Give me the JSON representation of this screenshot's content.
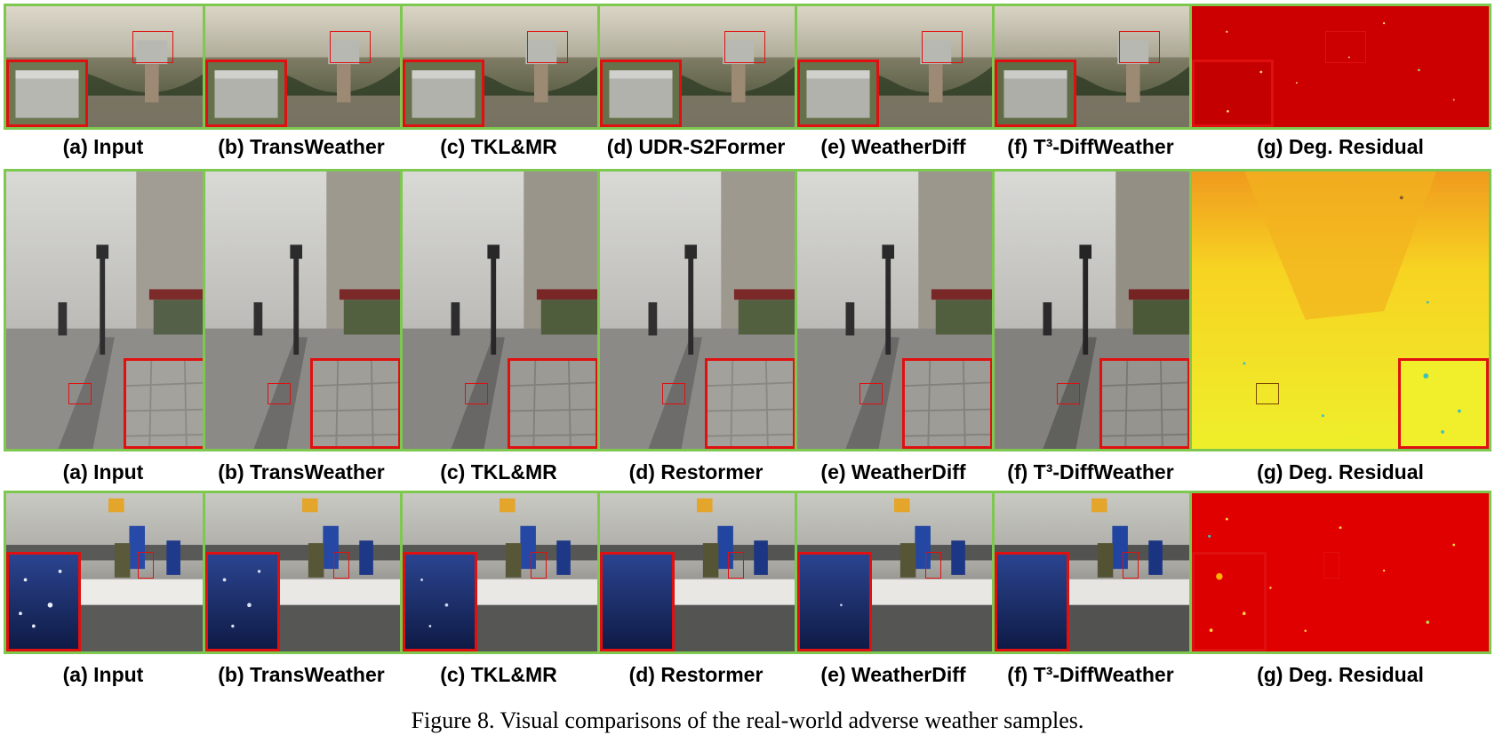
{
  "figure": {
    "caption": "Figure 8. Visual comparisons of the real-world adverse weather samples."
  },
  "rows": [
    {
      "scene": "haze",
      "labels": [
        "(a) Input",
        "(b) TransWeather",
        "(c) TKL&MR",
        "(d) UDR-S2Former",
        "(e) WeatherDiff",
        "(f) T³-DiffWeather",
        "(g) Deg. Residual"
      ]
    },
    {
      "scene": "fog-street",
      "labels": [
        "(a) Input",
        "(b) TransWeather",
        "(c) TKL&MR",
        "(d) Restormer",
        "(e) WeatherDiff",
        "(f) T³-DiffWeather",
        "(g) Deg. Residual"
      ]
    },
    {
      "scene": "snow-street",
      "labels": [
        "(a) Input",
        "(b) TransWeather",
        "(c) TKL&MR",
        "(d) Restormer",
        "(e) WeatherDiff",
        "(f) T³-DiffWeather",
        "(g) Deg. Residual"
      ]
    }
  ],
  "colors": {
    "panel_border": "#7ec850",
    "zoom_box": "#e01010"
  }
}
